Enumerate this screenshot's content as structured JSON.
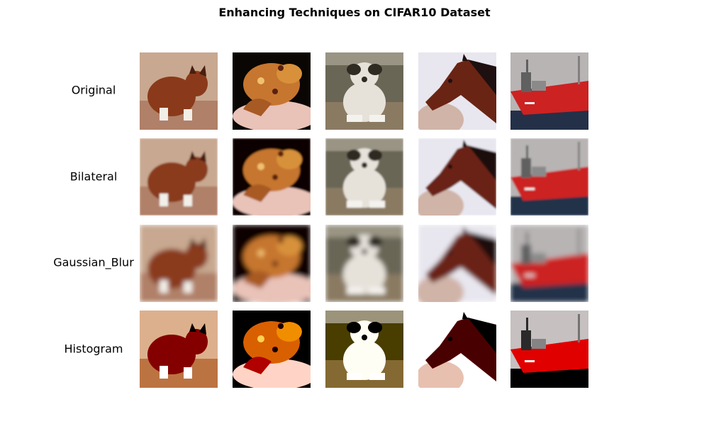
{
  "title": "Enhancing Techniques on CIFAR10 Dataset",
  "rows": [
    {
      "label": "Original",
      "variant": "original"
    },
    {
      "label": "Bilateral",
      "variant": "bilateral"
    },
    {
      "label": "Gaussian_Blur",
      "variant": "blur"
    },
    {
      "label": "Histogram",
      "variant": "histogram"
    }
  ],
  "images": [
    {
      "subject": "cat",
      "bg": "#c8a890",
      "main": "#8a3a1a",
      "accent": "#f2eee8",
      "dark": "#4a1e10"
    },
    {
      "subject": "frog",
      "bg": "#0a0604",
      "main": "#c6762e",
      "accent": "#e9c2b8",
      "dark": "#5b2010"
    },
    {
      "subject": "dog",
      "bg": "#6a6656",
      "main": "#e6e2da",
      "accent": "#2f2a22",
      "dark": "#8a7a62"
    },
    {
      "subject": "horse",
      "bg": "#e8e6ee",
      "main": "#6a2414",
      "accent": "#d0b4a8",
      "dark": "#1e1010"
    },
    {
      "subject": "ship",
      "bg": "#b8b4b4",
      "main": "#cc2222",
      "accent": "#243048",
      "dark": "#606060"
    }
  ]
}
